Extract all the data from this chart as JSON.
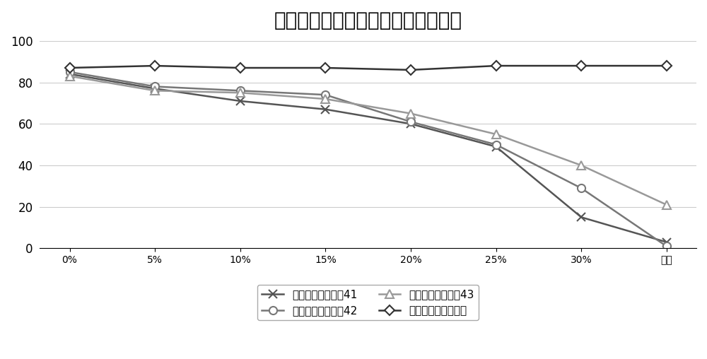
{
  "title": "氯化钓污染浆中润滑系数降低率对比",
  "x_labels": [
    "0%",
    "5%",
    "10%",
    "15%",
    "20%",
    "25%",
    "30%",
    "饱和"
  ],
  "series": [
    {
      "name": "市售低荧光润滑剩41",
      "values": [
        84,
        77,
        71,
        67,
        60,
        49,
        15,
        3
      ],
      "color": "#555555",
      "marker": "x",
      "markersize": 9,
      "linewidth": 1.8,
      "markerfacecolor": "#555555"
    },
    {
      "name": "市售低荧光润滑剩42",
      "values": [
        85,
        78,
        76,
        74,
        61,
        50,
        29,
        1
      ],
      "color": "#777777",
      "marker": "o",
      "markersize": 8,
      "linewidth": 1.8,
      "markerfacecolor": "white"
    },
    {
      "name": "市售低荧光润滑剩43",
      "values": [
        83,
        76,
        75,
        72,
        65,
        55,
        40,
        21
      ],
      "color": "#999999",
      "marker": "^",
      "markersize": 9,
      "linewidth": 1.8,
      "markerfacecolor": "white"
    },
    {
      "name": "本发明低荧光润滑剩",
      "values": [
        87,
        88,
        87,
        87,
        86,
        88,
        88,
        88
      ],
      "color": "#333333",
      "marker": "D",
      "markersize": 7,
      "linewidth": 1.8,
      "markerfacecolor": "white"
    }
  ],
  "ylim": [
    0,
    100
  ],
  "yticks": [
    0,
    20,
    40,
    60,
    80,
    100
  ],
  "background_color": "#ffffff",
  "title_fontsize": 20,
  "legend_fontsize": 11,
  "tick_fontsize": 12,
  "grid_color": "#cccccc",
  "legend_ncol": 2
}
